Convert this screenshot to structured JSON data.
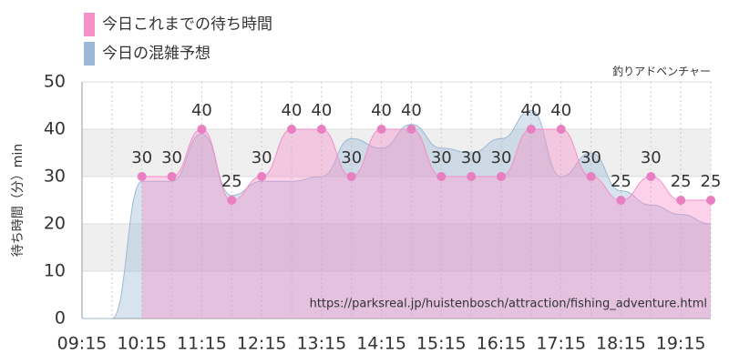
{
  "chart_data": {
    "type": "area",
    "subtitle": "釣りアドベンチャー",
    "y_label": "待ち時間（分）min",
    "annotation": "https://parksreal.jp/huistenbosch/attraction/fishing_adventure.html",
    "categories": [
      "09:15",
      null,
      "10:15",
      null,
      "11:15",
      null,
      "12:15",
      null,
      "13:15",
      null,
      "14:15",
      null,
      "15:15",
      null,
      "16:15",
      null,
      "17:15",
      null,
      "18:15",
      null,
      "19:15",
      null
    ],
    "series": [
      {
        "name": "今日これまでの待ち時間",
        "color": "#f48fc8",
        "markers": true,
        "data_labels": true,
        "values": [
          null,
          null,
          30,
          30,
          40,
          25,
          30,
          40,
          40,
          30,
          40,
          40,
          30,
          30,
          30,
          40,
          40,
          30,
          25,
          30,
          25,
          25
        ]
      },
      {
        "name": "今日の混雑予想",
        "color": "#9bb9d6",
        "markers": false,
        "data_labels": false,
        "values": [
          0,
          0,
          29,
          29,
          39,
          26,
          29,
          29,
          30,
          38,
          36,
          41,
          36,
          35,
          38,
          44,
          30,
          35,
          27,
          24,
          22,
          20
        ]
      }
    ],
    "ylim": [
      0,
      50
    ],
    "yticks": [
      0,
      10,
      20,
      30,
      40,
      50
    ],
    "grid": true
  }
}
